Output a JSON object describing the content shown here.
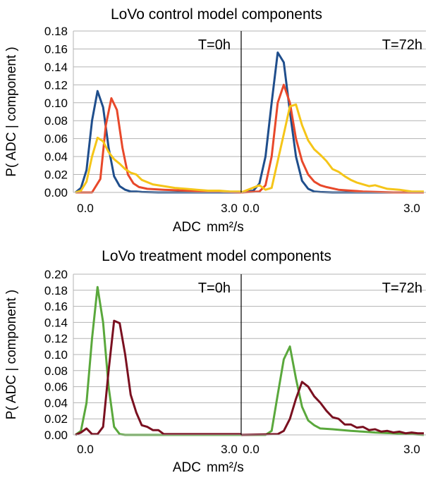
{
  "chart_data": [
    {
      "type": "line",
      "title": "LoVo control model components",
      "ylabel": "P( ADC | component )",
      "xlabel": "ADC",
      "xunit": "mm²/s",
      "ylim": [
        0,
        0.18
      ],
      "yticks": [
        "0.00",
        "0.02",
        "0.04",
        "0.06",
        "0.08",
        "0.10",
        "0.12",
        "0.14",
        "0.16",
        "0.18"
      ],
      "xlim": [
        0,
        3.0
      ],
      "xtick_labels": [
        "0.0",
        "3.0"
      ],
      "grid": "horizontal",
      "panels": [
        {
          "label": "T=0h",
          "series": [
            {
              "color": "#1f4e8c",
              "x": [
                0,
                0.1,
                0.2,
                0.3,
                0.4,
                0.5,
                0.6,
                0.7,
                0.8,
                0.9,
                1.0,
                1.1,
                1.2,
                1.5,
                2.0,
                2.5,
                3.0
              ],
              "y": [
                0,
                0.005,
                0.025,
                0.08,
                0.113,
                0.095,
                0.05,
                0.018,
                0.007,
                0.003,
                0.001,
                0.001,
                0.0005,
                0,
                0,
                0,
                0
              ]
            },
            {
              "color": "#e8482a",
              "x": [
                0,
                0.3,
                0.45,
                0.55,
                0.65,
                0.75,
                0.85,
                0.95,
                1.05,
                1.15,
                1.3,
                1.6,
                2.0,
                2.5,
                3.0
              ],
              "y": [
                0,
                0,
                0.015,
                0.075,
                0.105,
                0.092,
                0.05,
                0.02,
                0.01,
                0.006,
                0.004,
                0.003,
                0.002,
                0.001,
                0
              ]
            },
            {
              "color": "#f5c518",
              "x": [
                0,
                0.1,
                0.2,
                0.3,
                0.4,
                0.5,
                0.6,
                0.7,
                0.8,
                0.9,
                1.0,
                1.1,
                1.2,
                1.4,
                1.6,
                1.8,
                2.0,
                2.2,
                2.4,
                2.6,
                2.8,
                3.0
              ],
              "y": [
                0,
                0.002,
                0.012,
                0.04,
                0.061,
                0.057,
                0.045,
                0.037,
                0.032,
                0.026,
                0.022,
                0.02,
                0.014,
                0.009,
                0.007,
                0.005,
                0.004,
                0.003,
                0.002,
                0.002,
                0.001,
                0.001
              ]
            }
          ]
        },
        {
          "label": "T=72h",
          "series": [
            {
              "color": "#1f4e8c",
              "x": [
                0,
                0.2,
                0.3,
                0.4,
                0.5,
                0.6,
                0.7,
                0.8,
                0.9,
                1.0,
                1.1,
                1.2,
                1.3,
                1.5,
                2.0,
                3.0
              ],
              "y": [
                0,
                0.002,
                0.01,
                0.04,
                0.1,
                0.156,
                0.145,
                0.09,
                0.04,
                0.013,
                0.004,
                0.001,
                0.0005,
                0,
                0,
                0
              ]
            },
            {
              "color": "#e8482a",
              "x": [
                0,
                0.3,
                0.4,
                0.5,
                0.6,
                0.7,
                0.8,
                0.9,
                1.0,
                1.1,
                1.2,
                1.3,
                1.4,
                1.6,
                1.8,
                2.0,
                2.5,
                3.0
              ],
              "y": [
                0,
                0.001,
                0.008,
                0.04,
                0.1,
                0.12,
                0.1,
                0.06,
                0.035,
                0.02,
                0.012,
                0.008,
                0.006,
                0.003,
                0.002,
                0.001,
                0,
                0
              ]
            },
            {
              "color": "#f5c518",
              "x": [
                0,
                0.3,
                0.4,
                0.5,
                0.6,
                0.7,
                0.8,
                0.9,
                1.0,
                1.1,
                1.2,
                1.3,
                1.4,
                1.5,
                1.6,
                1.7,
                1.8,
                1.9,
                2.0,
                2.1,
                2.2,
                2.3,
                2.4,
                2.6,
                2.8,
                3.0
              ],
              "y": [
                0,
                0.008,
                0.003,
                0.005,
                0.035,
                0.065,
                0.096,
                0.098,
                0.075,
                0.058,
                0.048,
                0.042,
                0.035,
                0.026,
                0.023,
                0.018,
                0.014,
                0.011,
                0.009,
                0.007,
                0.008,
                0.006,
                0.004,
                0.003,
                0.001,
                0.001
              ]
            }
          ]
        }
      ]
    },
    {
      "type": "line",
      "title": "LoVo treatment model components",
      "ylabel": "P( ADC | component )",
      "xlabel": "ADC",
      "xunit": "mm²/s",
      "ylim": [
        0,
        0.2
      ],
      "yticks": [
        "0.00",
        "0.02",
        "0.04",
        "0.06",
        "0.08",
        "0.10",
        "0.12",
        "0.14",
        "0.16",
        "0.18",
        "0.20"
      ],
      "xlim": [
        0,
        3.0
      ],
      "xtick_labels": [
        "0.0",
        "3.0"
      ],
      "grid": "horizontal",
      "panels": [
        {
          "label": "T=0h",
          "series": [
            {
              "color": "#5aa83c",
              "x": [
                0,
                0.1,
                0.2,
                0.3,
                0.4,
                0.5,
                0.6,
                0.7,
                0.8,
                0.9,
                1.0,
                1.5,
                2.0,
                2.5,
                3.0
              ],
              "y": [
                0,
                0.005,
                0.04,
                0.12,
                0.184,
                0.14,
                0.06,
                0.01,
                0.001,
                0,
                0,
                0,
                0,
                0,
                0
              ]
            },
            {
              "color": "#7a1020",
              "x": [
                0,
                0.1,
                0.2,
                0.3,
                0.4,
                0.5,
                0.6,
                0.7,
                0.8,
                0.9,
                1.0,
                1.1,
                1.2,
                1.3,
                1.4,
                1.5,
                1.6,
                1.7,
                2.0,
                2.3,
                2.6,
                3.0
              ],
              "y": [
                0,
                0.003,
                0.008,
                0.001,
                0.001,
                0.01,
                0.08,
                0.142,
                0.139,
                0.1,
                0.05,
                0.028,
                0.012,
                0.01,
                0.006,
                0.006,
                0.001,
                0.001,
                0.001,
                0.001,
                0.001,
                0.001
              ]
            }
          ]
        },
        {
          "label": "T=72h",
          "series": [
            {
              "color": "#5aa83c",
              "x": [
                0,
                0.4,
                0.5,
                0.6,
                0.7,
                0.8,
                0.9,
                1.0,
                1.1,
                1.2,
                1.3,
                1.5,
                1.8,
                2.0,
                2.2,
                2.5,
                2.8,
                3.0
              ],
              "y": [
                0,
                0,
                0.005,
                0.05,
                0.094,
                0.11,
                0.07,
                0.035,
                0.018,
                0.012,
                0.008,
                0.007,
                0.005,
                0.004,
                0.003,
                0.002,
                0.001,
                0
              ]
            },
            {
              "color": "#7a1020",
              "x": [
                0,
                0.6,
                0.7,
                0.8,
                0.9,
                1.0,
                1.1,
                1.2,
                1.3,
                1.4,
                1.5,
                1.6,
                1.7,
                1.8,
                1.9,
                2.0,
                2.1,
                2.2,
                2.3,
                2.4,
                2.5,
                2.6,
                2.7,
                2.8,
                2.9,
                3.0
              ],
              "y": [
                0,
                0.001,
                0.005,
                0.02,
                0.045,
                0.066,
                0.06,
                0.048,
                0.04,
                0.03,
                0.022,
                0.02,
                0.013,
                0.013,
                0.009,
                0.01,
                0.006,
                0.007,
                0.004,
                0.005,
                0.003,
                0.004,
                0.002,
                0.003,
                0.002,
                0.002
              ]
            }
          ]
        }
      ]
    }
  ]
}
